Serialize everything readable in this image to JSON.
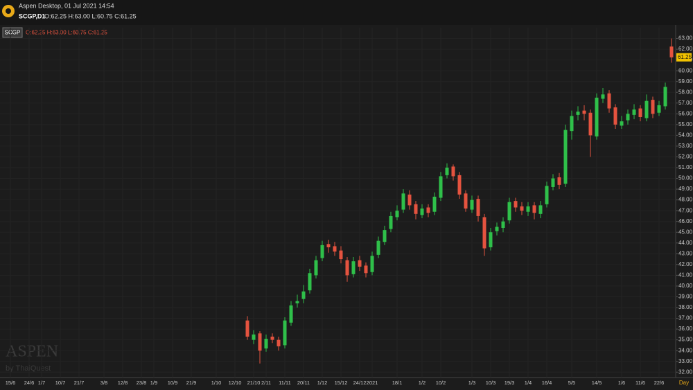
{
  "chart_data": {
    "type": "candlestick",
    "app_title": "Aspen Desktop, 01 Jul 2021 14:54",
    "symbol_line": "SCGP,D1",
    "ohlc_text": "O:62.25 H:63.00 L:60.75 C:61.25",
    "symbol": "SCGP",
    "watermark": "ASPEN",
    "watermark_sub": "by ThaiQuest",
    "x_unit": "Day",
    "up_color": "#2fc04a",
    "down_color": "#e5533f",
    "grid": true,
    "categories": [
      null,
      "15/6",
      null,
      null,
      "24/6",
      null,
      "1/7",
      null,
      null,
      "10/7",
      null,
      null,
      "21/7",
      null,
      null,
      null,
      "3/8",
      null,
      null,
      "12/8",
      null,
      null,
      "23/8",
      null,
      "1/9",
      null,
      null,
      "10/9",
      null,
      null,
      "21/9",
      null,
      null,
      null,
      "1/10",
      null,
      null,
      "12/10",
      null,
      null,
      "21/10",
      null,
      "2/11",
      null,
      null,
      "11/11",
      null,
      null,
      "20/11",
      null,
      null,
      "1/12",
      null,
      null,
      "15/12",
      null,
      null,
      "24/12",
      null,
      "2021",
      null,
      null,
      null,
      "18/1",
      null,
      null,
      null,
      "1/2",
      null,
      null,
      "10/2",
      null,
      null,
      null,
      null,
      "1/3",
      null,
      null,
      "10/3",
      null,
      null,
      "19/3",
      null,
      null,
      "1/4",
      null,
      null,
      "16/4",
      null,
      null,
      null,
      "5/5",
      null,
      null,
      null,
      "14/5",
      null,
      null,
      null,
      "1/6",
      null,
      null,
      "11/6",
      null,
      null,
      "22/6",
      null,
      null
    ],
    "open": [
      null,
      null,
      null,
      null,
      null,
      null,
      null,
      null,
      null,
      null,
      null,
      null,
      null,
      null,
      null,
      null,
      null,
      null,
      null,
      null,
      null,
      null,
      null,
      null,
      null,
      null,
      null,
      null,
      null,
      null,
      null,
      null,
      null,
      null,
      null,
      null,
      null,
      null,
      null,
      36.8,
      35.0,
      35.6,
      34.2,
      35.3,
      35.0,
      34.5,
      36.6,
      38.4,
      38.8,
      39.6,
      41.0,
      42.6,
      43.9,
      43.7,
      43.3,
      42.4,
      41.1,
      42.4,
      41.9,
      41.3,
      42.9,
      44.1,
      45.3,
      46.4,
      47.1,
      48.5,
      47.6,
      46.6,
      47.3,
      46.9,
      48.2,
      50.3,
      51.1,
      50.3,
      48.6,
      47.1,
      48.1,
      46.4,
      43.6,
      45.1,
      45.4,
      46.1,
      47.9,
      47.4,
      46.9,
      47.5,
      46.7,
      47.6,
      49.2,
      50.1,
      49.5,
      54.4,
      55.9,
      56.3,
      56.1,
      53.9,
      57.4,
      57.9,
      56.6,
      54.9,
      55.4,
      55.9,
      56.5,
      55.6,
      57.3,
      56.1,
      56.7,
      62.25
    ],
    "high": [
      null,
      null,
      null,
      null,
      null,
      null,
      null,
      null,
      null,
      null,
      null,
      null,
      null,
      null,
      null,
      null,
      null,
      null,
      null,
      null,
      null,
      null,
      null,
      null,
      null,
      null,
      null,
      null,
      null,
      null,
      null,
      null,
      null,
      null,
      null,
      null,
      null,
      null,
      null,
      37.2,
      35.9,
      35.8,
      35.5,
      35.6,
      35.3,
      37.1,
      38.6,
      39.2,
      40.1,
      41.6,
      42.8,
      44.2,
      44.3,
      44.1,
      43.7,
      42.7,
      42.7,
      42.8,
      42.2,
      43.2,
      44.6,
      45.6,
      46.9,
      47.5,
      49.0,
      48.9,
      47.9,
      47.6,
      47.6,
      48.7,
      50.6,
      51.4,
      51.3,
      50.6,
      48.9,
      48.4,
      48.4,
      46.7,
      45.4,
      45.9,
      46.4,
      48.2,
      48.2,
      47.8,
      47.8,
      47.8,
      47.9,
      49.7,
      50.4,
      50.5,
      55.0,
      56.3,
      56.7,
      56.8,
      56.4,
      57.9,
      58.4,
      58.2,
      56.9,
      55.8,
      56.4,
      56.9,
      56.8,
      57.8,
      57.6,
      57.2,
      58.9,
      63.0
    ],
    "low": [
      null,
      null,
      null,
      null,
      null,
      null,
      null,
      null,
      null,
      null,
      null,
      null,
      null,
      null,
      null,
      null,
      null,
      null,
      null,
      null,
      null,
      null,
      null,
      null,
      null,
      null,
      null,
      null,
      null,
      null,
      null,
      null,
      null,
      null,
      null,
      null,
      null,
      null,
      null,
      35.0,
      34.6,
      32.8,
      33.9,
      34.7,
      34.0,
      34.2,
      36.3,
      38.0,
      38.4,
      39.3,
      40.7,
      42.3,
      43.1,
      42.8,
      42.1,
      40.4,
      40.8,
      41.4,
      40.8,
      41.0,
      42.6,
      43.8,
      45.0,
      46.1,
      46.8,
      47.1,
      46.2,
      46.3,
      46.4,
      46.6,
      47.9,
      50.0,
      49.8,
      48.1,
      46.9,
      46.8,
      46.0,
      42.8,
      43.3,
      44.7,
      45.0,
      45.8,
      46.9,
      46.6,
      46.5,
      46.2,
      46.3,
      47.3,
      48.9,
      49.0,
      49.2,
      53.6,
      55.4,
      55.4,
      52.0,
      53.6,
      57.0,
      56.1,
      54.6,
      54.6,
      55.0,
      55.5,
      55.3,
      55.3,
      55.6,
      55.8,
      56.4,
      60.75
    ],
    "close": [
      null,
      null,
      null,
      null,
      null,
      null,
      null,
      null,
      null,
      null,
      null,
      null,
      null,
      null,
      null,
      null,
      null,
      null,
      null,
      null,
      null,
      null,
      null,
      null,
      null,
      null,
      null,
      null,
      null,
      null,
      null,
      null,
      null,
      null,
      null,
      null,
      null,
      null,
      null,
      35.3,
      35.5,
      34.0,
      35.1,
      35.0,
      34.4,
      36.8,
      38.2,
      38.6,
      39.5,
      41.2,
      42.4,
      43.8,
      43.6,
      43.2,
      42.5,
      41.0,
      42.3,
      41.8,
      41.2,
      42.8,
      44.2,
      45.2,
      46.5,
      47.0,
      48.6,
      47.5,
      46.7,
      47.2,
      46.8,
      48.3,
      50.2,
      51.0,
      50.2,
      48.5,
      47.2,
      48.0,
      46.5,
      43.5,
      45.0,
      45.5,
      46.0,
      47.8,
      47.3,
      47.0,
      47.4,
      46.8,
      47.5,
      49.3,
      50.0,
      49.4,
      54.5,
      55.8,
      56.2,
      56.0,
      54.0,
      57.5,
      57.8,
      56.5,
      55.0,
      55.3,
      56.0,
      56.4,
      55.7,
      57.2,
      56.0,
      56.8,
      58.5,
      61.25
    ],
    "ylim": [
      31.5,
      64
    ],
    "yticks": [
      {
        "value": 32,
        "label": "32.00"
      },
      {
        "value": 33,
        "label": "33.00"
      },
      {
        "value": 34,
        "label": "34.00"
      },
      {
        "value": 35,
        "label": "35.00"
      },
      {
        "value": 36,
        "label": "36.00"
      },
      {
        "value": 37,
        "label": "37.00"
      },
      {
        "value": 38,
        "label": "38.00"
      },
      {
        "value": 39,
        "label": "39.00"
      },
      {
        "value": 40,
        "label": "40.00"
      },
      {
        "value": 41,
        "label": "41.00"
      },
      {
        "value": 42,
        "label": "42.00"
      },
      {
        "value": 43,
        "label": "43.00"
      },
      {
        "value": 44,
        "label": "44.00"
      },
      {
        "value": 45,
        "label": "45.00"
      },
      {
        "value": 46,
        "label": "46.00"
      },
      {
        "value": 47,
        "label": "47.00"
      },
      {
        "value": 48,
        "label": "48.00"
      },
      {
        "value": 49,
        "label": "49.00"
      },
      {
        "value": 50,
        "label": "50.00"
      },
      {
        "value": 51,
        "label": "51.00"
      },
      {
        "value": 52,
        "label": "52.00"
      },
      {
        "value": 53,
        "label": "53.00"
      },
      {
        "value": 54,
        "label": "54.00"
      },
      {
        "value": 55,
        "label": "55.00"
      },
      {
        "value": 56,
        "label": "56.00"
      },
      {
        "value": 57,
        "label": "57.00"
      },
      {
        "value": 58,
        "label": "58.00"
      },
      {
        "value": 59,
        "label": "59.00"
      },
      {
        "value": 60,
        "label": "60.00"
      },
      {
        "value": 61,
        "label": "61.00"
      },
      {
        "value": 62,
        "label": "62.00"
      },
      {
        "value": 63,
        "label": "63.00"
      }
    ]
  }
}
